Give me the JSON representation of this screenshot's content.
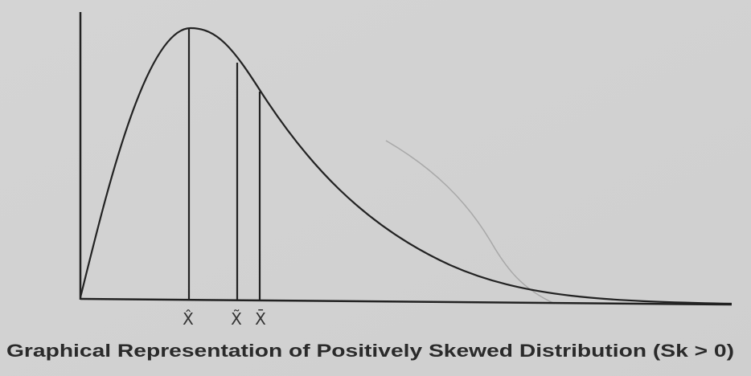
{
  "diagram": {
    "labels": {
      "mode": "X̂",
      "median": "X̃",
      "mean": "X̄"
    },
    "caption": "Graphical Representation of Positively Skewed Distribution (Sk > 0)"
  }
}
